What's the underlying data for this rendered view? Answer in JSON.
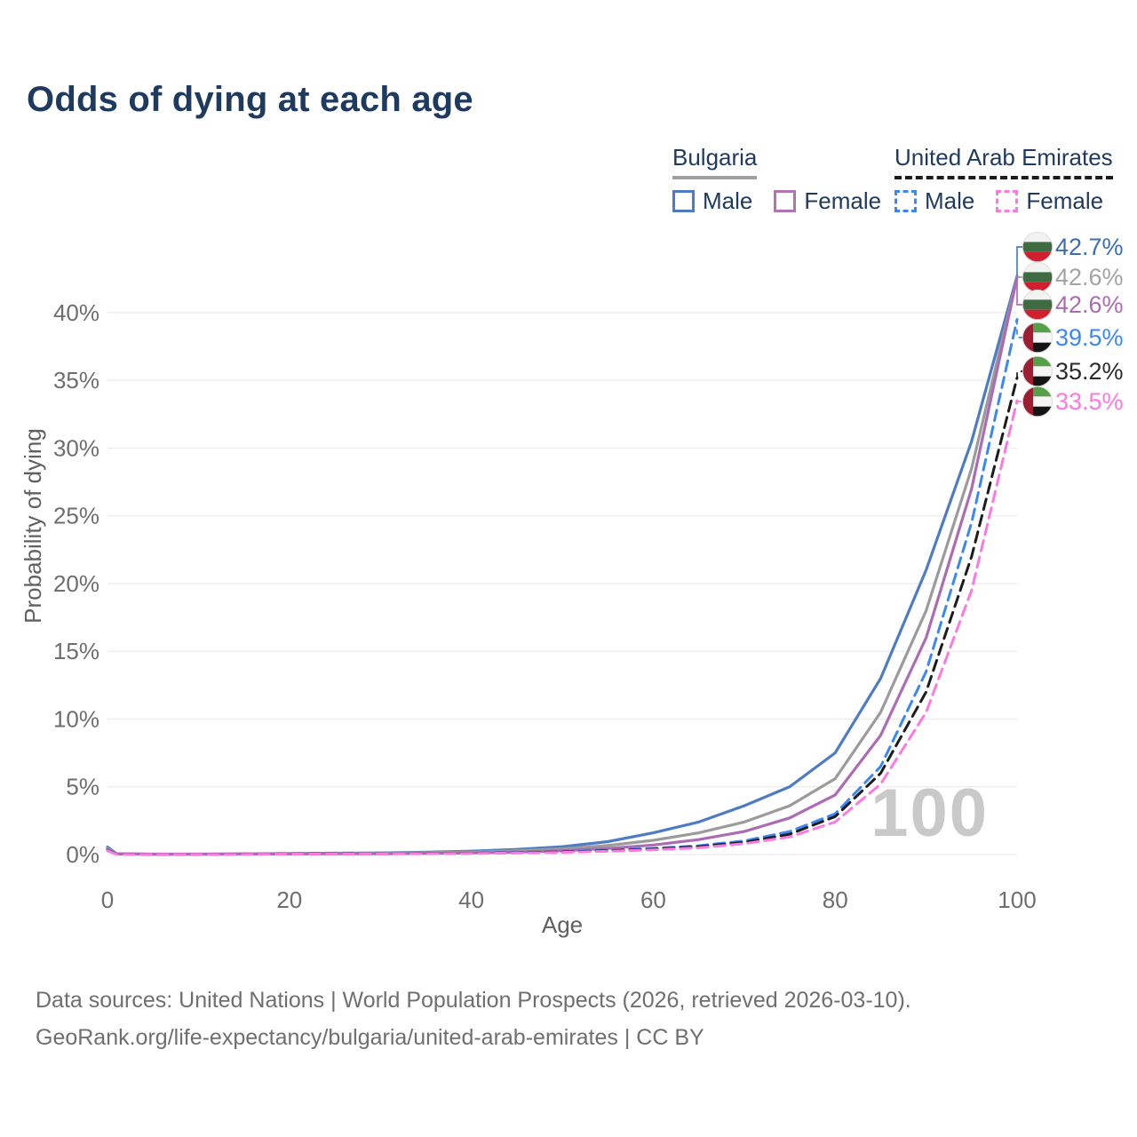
{
  "title": "Odds of dying at each age",
  "legend": {
    "groups": [
      {
        "name": "Bulgaria",
        "line_style": "solid",
        "line_color": "#a0a0a0",
        "items": [
          {
            "label": "Male",
            "color": "#4d7cc3"
          },
          {
            "label": "Female",
            "color": "#b273b4"
          }
        ]
      },
      {
        "name": "United Arab Emirates",
        "line_style": "dashed",
        "line_color": "#1c1c1c",
        "items": [
          {
            "label": "Male",
            "color": "#3c87f2"
          },
          {
            "label": "Female",
            "color": "#fb79e0"
          }
        ]
      }
    ]
  },
  "chart_data": {
    "type": "line",
    "title": "Odds of dying at each age",
    "xlabel": "Age",
    "ylabel": "Probability of dying",
    "x_ticks": [
      "0",
      "20",
      "40",
      "60",
      "80",
      "100"
    ],
    "y_ticks": [
      "0%",
      "5%",
      "10%",
      "15%",
      "20%",
      "25%",
      "30%",
      "35%",
      "40%"
    ],
    "xlim": [
      0,
      100
    ],
    "ylim_pct": [
      0,
      40
    ],
    "grid": "horizontal",
    "watermark": "100",
    "ages": [
      0,
      1,
      5,
      10,
      15,
      20,
      25,
      30,
      35,
      40,
      45,
      50,
      55,
      60,
      65,
      70,
      75,
      80,
      85,
      90,
      95,
      100
    ],
    "series": [
      {
        "name": "Bulgaria male",
        "country": "Bulgaria",
        "sex": "Male",
        "color": "#4d7cc3",
        "dashed": false,
        "end_label": "42.7%",
        "label_color": "#3c6cb4",
        "flag": "bulgaria",
        "values": [
          0.55,
          0.06,
          0.03,
          0.03,
          0.05,
          0.08,
          0.1,
          0.12,
          0.17,
          0.25,
          0.38,
          0.58,
          0.95,
          1.6,
          2.4,
          3.6,
          5.0,
          7.5,
          13.0,
          21.0,
          30.5,
          42.7
        ]
      },
      {
        "name": "Bulgaria both sexes",
        "country": "Bulgaria",
        "sex": "Both",
        "color": "#9b9b9b",
        "dashed": false,
        "end_label": "42.6%",
        "label_color": "#a3a3a3",
        "flag": "bulgaria",
        "values": [
          0.45,
          0.05,
          0.02,
          0.02,
          0.04,
          0.06,
          0.08,
          0.09,
          0.13,
          0.18,
          0.28,
          0.42,
          0.66,
          1.05,
          1.6,
          2.4,
          3.6,
          5.6,
          10.5,
          18.0,
          28.5,
          42.6
        ]
      },
      {
        "name": "Bulgaria female",
        "country": "Bulgaria",
        "sex": "Female",
        "color": "#ab6cb3",
        "dashed": false,
        "end_label": "42.6%",
        "label_color": "#ab6cb3",
        "flag": "bulgaria",
        "values": [
          0.4,
          0.04,
          0.02,
          0.02,
          0.03,
          0.04,
          0.05,
          0.06,
          0.08,
          0.12,
          0.18,
          0.28,
          0.45,
          0.7,
          1.1,
          1.7,
          2.7,
          4.4,
          8.8,
          16.0,
          27.0,
          42.6
        ]
      },
      {
        "name": "United Arab Emirates male",
        "country": "United Arab Emirates",
        "sex": "Male",
        "color": "#3c87f2",
        "dashed": true,
        "end_label": "39.5%",
        "label_color": "#3c87f2",
        "flag": "uae",
        "values": [
          0.35,
          0.03,
          0.02,
          0.02,
          0.03,
          0.05,
          0.06,
          0.07,
          0.08,
          0.1,
          0.15,
          0.22,
          0.32,
          0.45,
          0.65,
          1.0,
          1.7,
          3.0,
          6.5,
          13.5,
          24.5,
          39.5
        ]
      },
      {
        "name": "United Arab Emirates both sexes",
        "country": "United Arab Emirates",
        "sex": "Both",
        "color": "#1c1c1c",
        "dashed": true,
        "end_label": "35.2%",
        "label_color": "#2b2b2b",
        "flag": "uae",
        "values": [
          0.3,
          0.03,
          0.02,
          0.02,
          0.03,
          0.04,
          0.05,
          0.06,
          0.07,
          0.09,
          0.13,
          0.19,
          0.28,
          0.4,
          0.58,
          0.9,
          1.5,
          2.8,
          6.0,
          12.0,
          22.0,
          35.2
        ]
      },
      {
        "name": "United Arab Emirates female",
        "country": "United Arab Emirates",
        "sex": "Female",
        "color": "#fb79e0",
        "dashed": true,
        "end_label": "33.5%",
        "label_color": "#fb79e0",
        "flag": "uae",
        "values": [
          0.28,
          0.02,
          0.01,
          0.01,
          0.02,
          0.03,
          0.04,
          0.05,
          0.06,
          0.08,
          0.11,
          0.16,
          0.24,
          0.35,
          0.5,
          0.8,
          1.3,
          2.4,
          5.2,
          10.5,
          19.5,
          33.5
        ]
      }
    ],
    "flag_colors": {
      "bulgaria": {
        "white": "#f2f2f2",
        "green": "#3e6b41",
        "red": "#d01f2f"
      },
      "uae": {
        "red": "#9d1d32",
        "green": "#57a04b",
        "white": "#f5f5f5",
        "black": "#141414"
      }
    },
    "colors": {
      "grid": "#ececec",
      "tick_text": "#6e6e6e",
      "axis_title_text": "#606060",
      "watermark": "#c9c9c9"
    }
  },
  "footer": {
    "line1": "Data sources: United Nations | World Population Prospects (2026, retrieved 2026-03-10).",
    "line2": "GeoRank.org/life-expectancy/bulgaria/united-arab-emirates | CC BY"
  }
}
